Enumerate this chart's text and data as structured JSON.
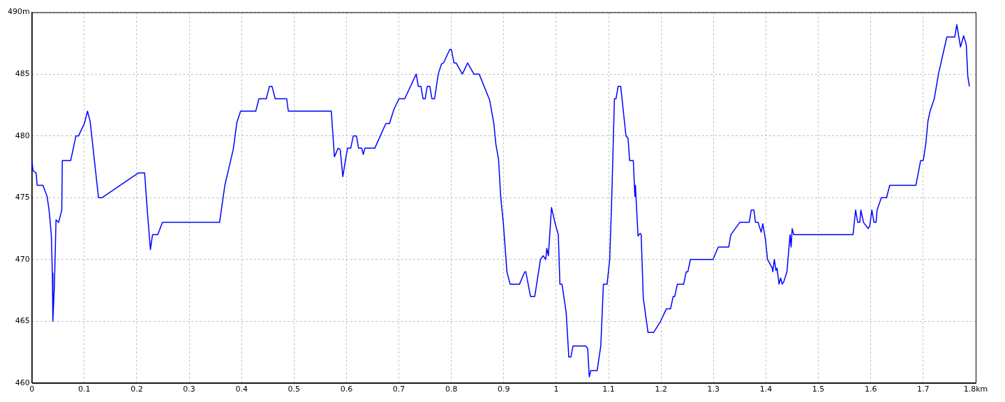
{
  "chart_data": {
    "type": "line",
    "grid": true,
    "marker": "none",
    "line_style": "solid",
    "xlim": [
      0,
      1.8
    ],
    "xticks": [
      0,
      0.1,
      0.2,
      0.3,
      0.4,
      0.5,
      0.6,
      0.7,
      0.8,
      0.9,
      1,
      1.1,
      1.2,
      1.3,
      1.4,
      1.5,
      1.6,
      1.7,
      {
        "value": 1.8,
        "label": "1.8km"
      }
    ],
    "ylim": [
      460,
      490
    ],
    "yticks": [
      460,
      465,
      470,
      475,
      480,
      485,
      {
        "value": 490,
        "label": "490m"
      }
    ],
    "series": [
      {
        "color": "#0000ff",
        "x": [
          0,
          0.002,
          0.008,
          0.01,
          0.021,
          0.029,
          0.033,
          0.037,
          0.039,
          0.04,
          0.043,
          0.046,
          0.051,
          0.057,
          0.058,
          0.074,
          0.084,
          0.089,
          0.1,
          0.106,
          0.111,
          0.127,
          0.134,
          0.203,
          0.215,
          0.22,
          0.226,
          0.23,
          0.24,
          0.249,
          0.358,
          0.368,
          0.384,
          0.391,
          0.398,
          0.427,
          0.433,
          0.447,
          0.453,
          0.458,
          0.464,
          0.486,
          0.489,
          0.571,
          0.577,
          0.584,
          0.588,
          0.593,
          0.599,
          0.602,
          0.608,
          0.613,
          0.619,
          0.623,
          0.629,
          0.632,
          0.635,
          0.654,
          0.675,
          0.682,
          0.69,
          0.7,
          0.711,
          0.733,
          0.737,
          0.742,
          0.746,
          0.75,
          0.754,
          0.759,
          0.763,
          0.768,
          0.775,
          0.781,
          0.785,
          0.797,
          0.8,
          0.805,
          0.809,
          0.821,
          0.831,
          0.843,
          0.853,
          0.873,
          0.881,
          0.885,
          0.89,
          0.894,
          0.899,
          0.906,
          0.912,
          0.93,
          0.94,
          0.942,
          0.951,
          0.959,
          0.97,
          0.975,
          0.98,
          0.982,
          0.985,
          0.991,
          0.998,
          1.004,
          1.007,
          1.011,
          1.019,
          1.024,
          1.028,
          1.032,
          1.056,
          1.06,
          1.063,
          1.066,
          1.078,
          1.085,
          1.09,
          1.097,
          1.102,
          1.106,
          1.111,
          1.114,
          1.118,
          1.123,
          1.128,
          1.133,
          1.137,
          1.14,
          1.147,
          1.15,
          1.151,
          1.156,
          1.16,
          1.162,
          1.166,
          1.175,
          1.186,
          1.199,
          1.21,
          1.218,
          1.223,
          1.226,
          1.231,
          1.243,
          1.248,
          1.251,
          1.256,
          1.299,
          1.309,
          1.329,
          1.333,
          1.35,
          1.368,
          1.372,
          1.377,
          1.38,
          1.385,
          1.391,
          1.394,
          1.399,
          1.403,
          1.412,
          1.413,
          1.416,
          1.419,
          1.421,
          1.425,
          1.428,
          1.431,
          1.434,
          1.44,
          1.444,
          1.446,
          1.448,
          1.45,
          1.453,
          1.566,
          1.571,
          1.575,
          1.579,
          1.581,
          1.586,
          1.595,
          1.598,
          1.602,
          1.606,
          1.61,
          1.612,
          1.62,
          1.63,
          1.636,
          1.686,
          1.695,
          1.7,
          1.705,
          1.709,
          1.713,
          1.721,
          1.729,
          1.745,
          1.76,
          1.764,
          1.771,
          1.777,
          1.782,
          1.785,
          1.788
        ],
        "values": [
          478,
          477.2,
          477,
          476,
          476,
          475.1,
          473.9,
          472,
          468.9,
          465,
          468,
          473.2,
          473,
          474,
          478,
          478,
          480,
          480,
          481,
          482,
          481.2,
          475,
          475,
          477,
          477,
          474,
          470.8,
          472,
          472,
          473,
          473,
          476,
          478.9,
          481.1,
          482,
          482,
          483,
          483,
          484,
          484,
          483,
          483,
          482,
          482,
          478.3,
          479,
          478.9,
          476.7,
          478.3,
          479,
          479,
          480,
          480,
          479,
          479,
          478.5,
          479,
          479,
          481,
          481,
          482.1,
          483,
          483,
          485,
          484,
          484,
          483,
          483,
          484,
          484,
          483,
          483,
          485,
          485.8,
          485.9,
          487,
          487,
          485.9,
          485.9,
          485,
          485.9,
          485,
          485,
          482.9,
          481,
          479.3,
          478.1,
          475.1,
          473,
          469,
          468,
          468,
          469,
          469,
          467,
          467,
          470,
          470.3,
          470,
          470.9,
          470.3,
          474.2,
          472.9,
          472,
          468,
          468,
          465.7,
          462.1,
          462.1,
          463,
          463,
          462.8,
          460.5,
          461,
          461,
          463,
          468,
          468,
          470,
          475.1,
          483,
          483,
          484,
          484,
          482,
          480,
          479.8,
          478,
          478,
          475.1,
          476,
          471.9,
          472.1,
          472,
          466.9,
          464.1,
          464.1,
          465,
          466,
          466,
          467,
          467,
          468,
          468,
          469,
          469,
          470,
          470,
          471,
          471,
          472,
          473,
          473,
          474,
          474,
          473,
          473,
          472.2,
          472.9,
          471.6,
          470,
          469.3,
          469,
          470,
          469.1,
          469.3,
          468,
          468.5,
          468,
          468.2,
          469,
          471,
          472,
          471,
          472.5,
          472,
          472,
          474,
          473,
          473,
          474,
          473,
          472.5,
          472.7,
          474,
          473,
          473,
          474,
          475,
          475,
          476,
          476,
          478,
          478,
          479.4,
          481.2,
          482,
          483,
          485,
          488,
          488,
          489,
          487.2,
          488.1,
          487.4,
          484.8,
          484
        ]
      }
    ]
  }
}
